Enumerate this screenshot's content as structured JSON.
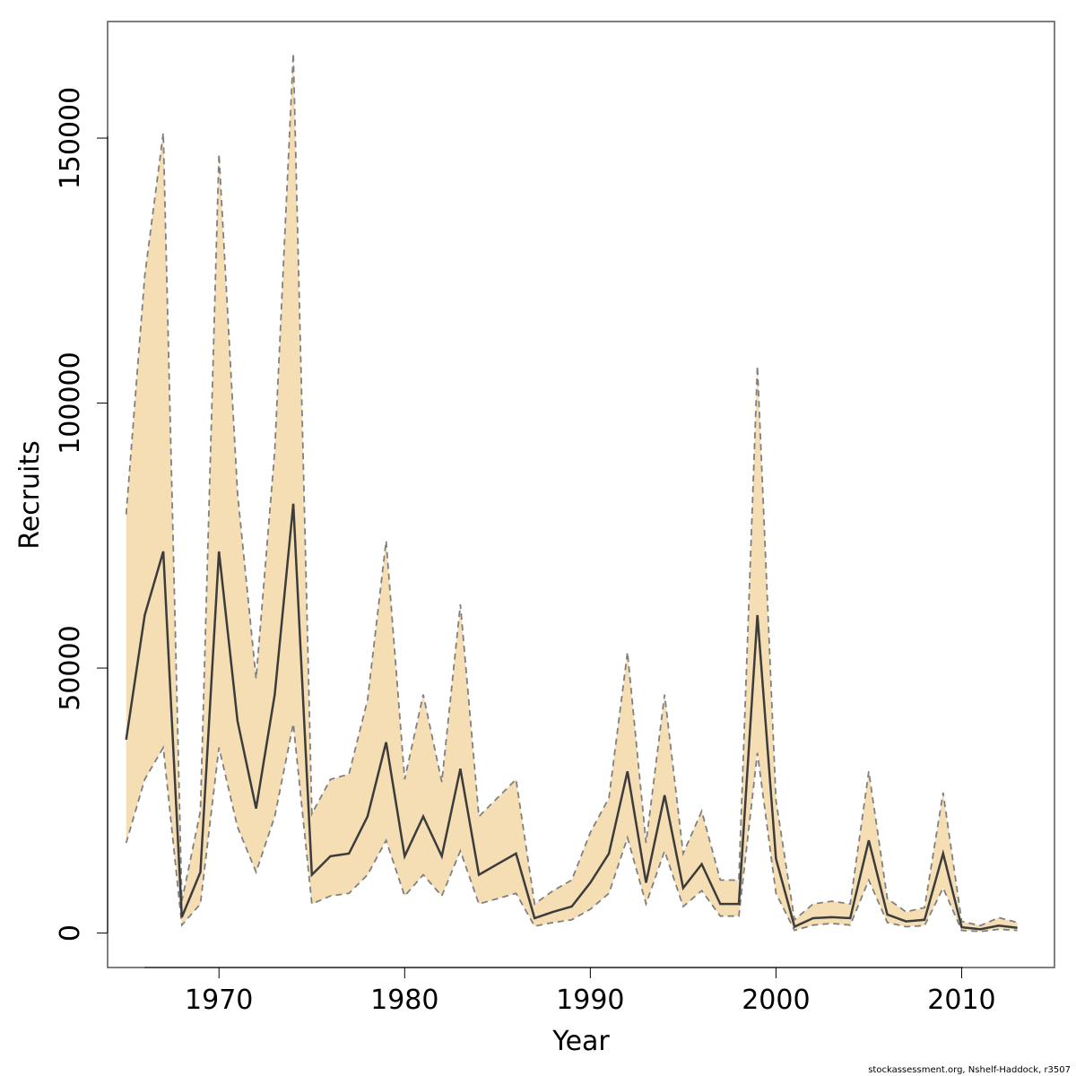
{
  "chart_data": {
    "type": "line",
    "xlabel": "Year",
    "ylabel": "Recruits",
    "xlim": [
      1964,
      2015
    ],
    "ylim": [
      -6500,
      172000
    ],
    "x_ticks": [
      1970,
      1980,
      1990,
      2000,
      2010
    ],
    "y_ticks": [
      0,
      50000,
      100000,
      150000
    ],
    "caption": "stockassessment.org, Nshelf-Haddock, r3507",
    "colors": {
      "band": "#f5deb3",
      "bounds": "#808080",
      "estimate": "#3c3c3c"
    },
    "x": [
      1965,
      1966,
      1967,
      1968,
      1969,
      1970,
      1971,
      1972,
      1973,
      1974,
      1975,
      1976,
      1977,
      1978,
      1979,
      1980,
      1981,
      1982,
      1983,
      1984,
      1985,
      1986,
      1987,
      1988,
      1989,
      1990,
      1991,
      1992,
      1993,
      1994,
      1995,
      1996,
      1997,
      1998,
      1999,
      2000,
      2001,
      2002,
      2003,
      2004,
      2005,
      2006,
      2007,
      2008,
      2009,
      2010,
      2011,
      2012,
      2013
    ],
    "series": [
      {
        "values": [
          36500,
          60000,
          72000,
          3000,
          11500,
          72000,
          40000,
          23500,
          45000,
          81000,
          11000,
          14500,
          15000,
          22000,
          36000,
          14500,
          22000,
          14500,
          31000,
          11000,
          13000,
          15000,
          2800,
          4000,
          5000,
          9500,
          15000,
          30500,
          9500,
          26000,
          8500,
          13000,
          5500,
          5500,
          60000,
          14000,
          1200,
          2800,
          3000,
          2800,
          17500,
          3500,
          2200,
          2500,
          15000,
          1100,
          700,
          1400,
          1000
        ]
      },
      {
        "values": [
          17000,
          29000,
          35000,
          1500,
          5500,
          35000,
          20000,
          11500,
          22000,
          39500,
          5500,
          7000,
          7500,
          11000,
          17500,
          7000,
          11000,
          7000,
          15500,
          5500,
          6500,
          7500,
          1300,
          2000,
          2500,
          4500,
          7500,
          18000,
          5500,
          15500,
          5000,
          8000,
          3200,
          3200,
          34000,
          7500,
          500,
          1500,
          1800,
          1500,
          10000,
          2000,
          1200,
          1400,
          8500,
          500,
          300,
          700,
          500
        ]
      },
      {
        "values": [
          79000,
          124000,
          151000,
          6000,
          23000,
          147000,
          83000,
          48000,
          91000,
          166000,
          22500,
          29000,
          30000,
          44000,
          74000,
          29000,
          45000,
          28500,
          62000,
          22000,
          25500,
          29000,
          5500,
          8000,
          10000,
          19000,
          25500,
          53000,
          17000,
          45000,
          15000,
          23000,
          10000,
          10000,
          107000,
          25000,
          2500,
          5500,
          6000,
          5500,
          30500,
          6500,
          4000,
          4800,
          26500,
          2200,
          1400,
          2900,
          2000
        ]
      }
    ]
  }
}
